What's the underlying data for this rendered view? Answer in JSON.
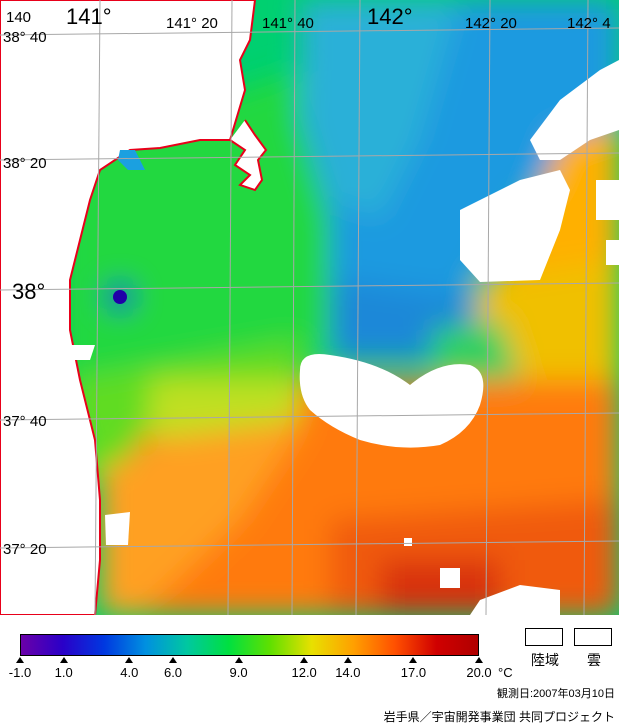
{
  "map": {
    "lon_labels": [
      {
        "text": "140",
        "size": "sm"
      },
      {
        "text": "141°",
        "size": "lg"
      },
      {
        "text": "141° 20",
        "size": "sm"
      },
      {
        "text": "141° 40",
        "size": "sm"
      },
      {
        "text": "142°",
        "size": "lg"
      },
      {
        "text": "142° 20",
        "size": "sm"
      },
      {
        "text": "142° 4",
        "size": "sm"
      }
    ],
    "lat_labels": [
      {
        "text": "38° 40",
        "size": "sm"
      },
      {
        "text": "38° 20",
        "size": "sm"
      },
      {
        "text": "38°",
        "size": "lg"
      },
      {
        "text": "37° 40",
        "size": "sm"
      },
      {
        "text": "37° 20",
        "size": "sm"
      }
    ],
    "coastline_color": "#e8001a",
    "land_color": "#ffffff",
    "cloud_color": "#ffffff",
    "grid_color": "#a8a8a8"
  },
  "legend": {
    "ticks": [
      "-1.0",
      "1.0",
      "4.0",
      "6.0",
      "9.0",
      "12.0",
      "14.0",
      "17.0",
      "20.0"
    ],
    "unit": "°C",
    "min": -1.0,
    "max": 20.0,
    "colors": [
      "#6a00a8",
      "#2a00c8",
      "#0038e0",
      "#0090e0",
      "#00c8a0",
      "#00e040",
      "#60e000",
      "#e8e000",
      "#ffa000",
      "#ff5000",
      "#d00000",
      "#b00000"
    ],
    "keys": [
      {
        "label": "陸域"
      },
      {
        "label": "雲"
      }
    ]
  },
  "observation_date": "観測日:2007年03月10日",
  "credit": "岩手県／宇宙開発事業団 共同プロジェクト"
}
